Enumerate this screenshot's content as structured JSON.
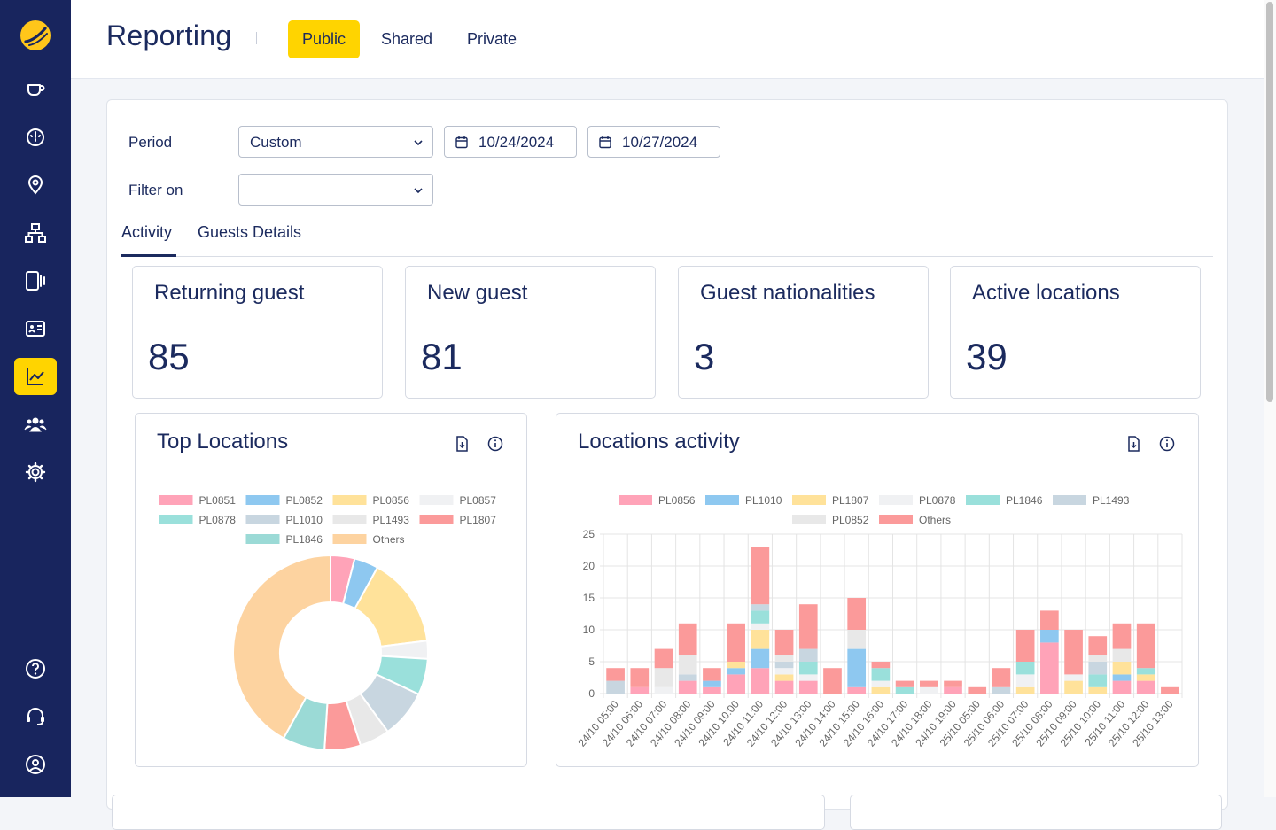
{
  "sidebar": {
    "items": [
      {
        "name": "coffee-cup-icon"
      },
      {
        "name": "speedometer-icon"
      },
      {
        "name": "location-pin-icon"
      },
      {
        "name": "network-icon"
      },
      {
        "name": "tablet-icon"
      },
      {
        "name": "id-card-icon"
      },
      {
        "name": "chart-line-icon",
        "active": true
      },
      {
        "name": "users-icon"
      },
      {
        "name": "gear-icon"
      },
      {
        "name": "help-icon"
      },
      {
        "name": "headset-icon"
      },
      {
        "name": "user-circle-icon"
      }
    ]
  },
  "header": {
    "title": "Reporting",
    "tabs": [
      {
        "label": "Public",
        "active": true
      },
      {
        "label": "Shared"
      },
      {
        "label": "Private"
      }
    ]
  },
  "filters": {
    "period_label": "Period",
    "period_value": "Custom",
    "date_from": "10/24/2024",
    "date_to": "10/27/2024",
    "filter_label": "Filter on",
    "filter_value": ""
  },
  "tabs": [
    {
      "label": "Activity",
      "active": true
    },
    {
      "label": "Guests Details"
    }
  ],
  "stats": [
    {
      "title": "Returning guest",
      "value": "85"
    },
    {
      "title": "New guest",
      "value": "81"
    },
    {
      "title": "Guest nationalities",
      "value": "3"
    },
    {
      "title": "Active locations",
      "value": "39"
    }
  ],
  "top_locations": {
    "title": "Top Locations",
    "icons": [
      "download-icon",
      "info-icon"
    ]
  },
  "locations_activity": {
    "title": "Locations activity",
    "icons": [
      "download-icon",
      "info-icon"
    ]
  },
  "colors": {
    "sidebar": "#18255e",
    "accent": "#ffd400",
    "text": "#1b2a5e"
  },
  "chart_data": [
    {
      "type": "pie",
      "title": "Top Locations",
      "donut": true,
      "legend_position": "top",
      "labels": [
        "PL0851",
        "PL0852",
        "PL0856",
        "PL0857",
        "PL0878",
        "PL1010",
        "PL1493",
        "PL1807",
        "PL1846",
        "Others"
      ],
      "colors": [
        "#ffa3b8",
        "#8ec8f0",
        "#ffe29a",
        "#f0f1f3",
        "#9ae0db",
        "#c8d6e0",
        "#e8e8e8",
        "#fb9a9a",
        "#9bdad6",
        "#fdd3a0"
      ],
      "values": [
        4,
        4,
        15,
        3,
        6,
        8,
        5,
        6,
        7,
        42
      ]
    },
    {
      "type": "bar",
      "stacked": true,
      "title": "Locations activity",
      "legend_position": "top",
      "ylim": [
        0,
        25
      ],
      "yticks": [
        0,
        5,
        10,
        15,
        20,
        25
      ],
      "grid": true,
      "categories": [
        "24/10 05:00",
        "24/10 06:00",
        "24/10 07:00",
        "24/10 08:00",
        "24/10 09:00",
        "24/10 10:00",
        "24/10 11:00",
        "24/10 12:00",
        "24/10 13:00",
        "24/10 14:00",
        "24/10 15:00",
        "24/10 16:00",
        "24/10 17:00",
        "24/10 18:00",
        "24/10 19:00",
        "25/10 05:00",
        "25/10 06:00",
        "25/10 07:00",
        "25/10 08:00",
        "25/10 09:00",
        "25/10 10:00",
        "25/10 11:00",
        "25/10 12:00",
        "25/10 13:00"
      ],
      "series": [
        {
          "name": "PL0856",
          "color": "#ffa3b8",
          "values": [
            0,
            1,
            0,
            2,
            1,
            3,
            4,
            2,
            2,
            0,
            1,
            0,
            0,
            0,
            1,
            0,
            0,
            0,
            8,
            0,
            0,
            2,
            2,
            0
          ]
        },
        {
          "name": "PL1010",
          "color": "#8ec8f0",
          "values": [
            0,
            0,
            0,
            0,
            1,
            1,
            3,
            0,
            0,
            0,
            6,
            0,
            0,
            0,
            0,
            0,
            0,
            0,
            2,
            0,
            0,
            1,
            0,
            0
          ]
        },
        {
          "name": "PL1807",
          "color": "#ffe29a",
          "values": [
            0,
            0,
            0,
            0,
            0,
            1,
            3,
            1,
            0,
            0,
            0,
            1,
            0,
            0,
            0,
            0,
            0,
            1,
            0,
            2,
            1,
            2,
            1,
            0
          ]
        },
        {
          "name": "PL0878",
          "color": "#f0f1f3",
          "values": [
            0,
            0,
            1,
            0,
            0,
            0,
            1,
            1,
            1,
            0,
            0,
            1,
            0,
            1,
            0,
            0,
            0,
            2,
            0,
            1,
            0,
            0,
            0,
            0
          ]
        },
        {
          "name": "PL1846",
          "color": "#9ae0db",
          "values": [
            0,
            0,
            0,
            0,
            0,
            0,
            2,
            0,
            2,
            0,
            0,
            2,
            1,
            0,
            0,
            0,
            0,
            2,
            0,
            0,
            2,
            0,
            1,
            0
          ]
        },
        {
          "name": "PL1493",
          "color": "#c8d6e0",
          "values": [
            2,
            0,
            0,
            1,
            0,
            0,
            1,
            1,
            2,
            0,
            0,
            0,
            0,
            0,
            0,
            0,
            1,
            0,
            0,
            0,
            2,
            0,
            0,
            0
          ]
        },
        {
          "name": "PL0852",
          "color": "#e8e8e8",
          "values": [
            0,
            0,
            3,
            3,
            0,
            0,
            0,
            1,
            0,
            0,
            3,
            0,
            0,
            0,
            0,
            0,
            0,
            0,
            0,
            0,
            1,
            2,
            0,
            0
          ]
        },
        {
          "name": "Others",
          "color": "#fb9a9a",
          "values": [
            2,
            3,
            3,
            5,
            2,
            6,
            9,
            4,
            7,
            4,
            5,
            1,
            1,
            1,
            1,
            1,
            3,
            5,
            3,
            7,
            3,
            4,
            7,
            1
          ]
        }
      ]
    }
  ]
}
